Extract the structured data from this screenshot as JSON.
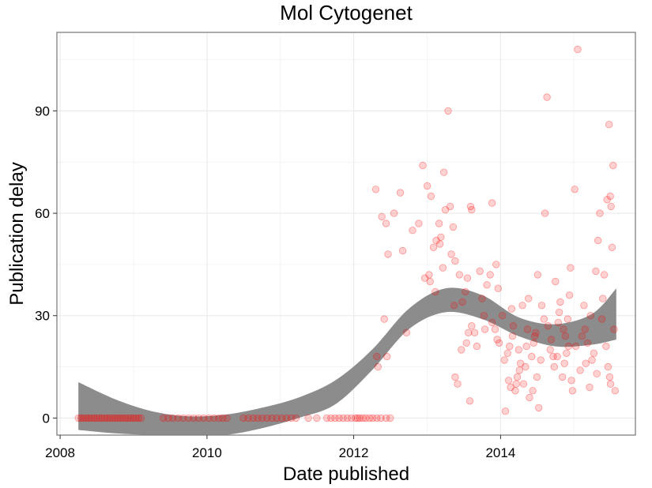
{
  "chart_data": {
    "type": "scatter",
    "title": "Mol Cytogenet",
    "xlabel": "Date published",
    "ylabel": "Publication delay",
    "x_ticks": [
      "2008",
      "2010",
      "2012",
      "2014"
    ],
    "y_ticks": [
      "0",
      "30",
      "60",
      "90"
    ],
    "xlim": [
      "2007-12-16",
      "2015-11-03"
    ],
    "ylim": [
      -5,
      113
    ],
    "grid": true,
    "legend": "none",
    "colors": {
      "points": "#ff0000",
      "smooth_band": "#8c8c8c",
      "grid": "#ebebeb",
      "border": "#7f7f7f"
    },
    "series": [
      {
        "points": [
          [
            "2008-04-01",
            0
          ],
          [
            "2008-04-14",
            0
          ],
          [
            "2008-04-27",
            0
          ],
          [
            "2008-05-10",
            0
          ],
          [
            "2008-05-23",
            0
          ],
          [
            "2008-06-05",
            0
          ],
          [
            "2008-06-18",
            0
          ],
          [
            "2008-07-01",
            0
          ],
          [
            "2008-07-14",
            0
          ],
          [
            "2008-07-27",
            0
          ],
          [
            "2008-08-09",
            0
          ],
          [
            "2008-08-22",
            0
          ],
          [
            "2008-09-04",
            0
          ],
          [
            "2008-09-17",
            0
          ],
          [
            "2008-09-30",
            0
          ],
          [
            "2008-10-13",
            0
          ],
          [
            "2008-10-26",
            0
          ],
          [
            "2008-11-08",
            0
          ],
          [
            "2008-11-21",
            0
          ],
          [
            "2008-12-04",
            0
          ],
          [
            "2008-12-17",
            0
          ],
          [
            "2008-12-30",
            0
          ],
          [
            "2009-01-12",
            0
          ],
          [
            "2009-01-25",
            0
          ],
          [
            "2009-02-07",
            0
          ],
          [
            "2009-05-28",
            0
          ],
          [
            "2009-06-22",
            0
          ],
          [
            "2009-07-15",
            0
          ],
          [
            "2009-08-10",
            0
          ],
          [
            "2009-09-05",
            0
          ],
          [
            "2009-10-01",
            0
          ],
          [
            "2009-10-26",
            0
          ],
          [
            "2009-11-20",
            0
          ],
          [
            "2009-12-15",
            0
          ],
          [
            "2010-01-10",
            0
          ],
          [
            "2010-02-04",
            0
          ],
          [
            "2010-03-01",
            0
          ],
          [
            "2010-03-20",
            0
          ],
          [
            "2010-04-10",
            0
          ],
          [
            "2010-07-01",
            0
          ],
          [
            "2010-07-25",
            0
          ],
          [
            "2010-08-18",
            0
          ],
          [
            "2010-09-10",
            0
          ],
          [
            "2010-10-03",
            0
          ],
          [
            "2010-10-27",
            0
          ],
          [
            "2010-11-20",
            0
          ],
          [
            "2010-12-14",
            0
          ],
          [
            "2011-01-08",
            0
          ],
          [
            "2011-02-01",
            0
          ],
          [
            "2011-02-25",
            0
          ],
          [
            "2011-03-20",
            0
          ],
          [
            "2011-05-20",
            0
          ],
          [
            "2011-07-01",
            0
          ],
          [
            "2011-08-20",
            0
          ],
          [
            "2011-09-10",
            0
          ],
          [
            "2011-09-30",
            0
          ],
          [
            "2011-10-20",
            0
          ],
          [
            "2011-11-09",
            0
          ],
          [
            "2011-11-30",
            0
          ],
          [
            "2011-12-20",
            0
          ],
          [
            "2012-01-09",
            0
          ],
          [
            "2012-01-20",
            0
          ],
          [
            "2012-01-31",
            0
          ],
          [
            "2012-02-15",
            0
          ],
          [
            "2012-03-01",
            0
          ],
          [
            "2012-03-20",
            0
          ],
          [
            "2012-04-05",
            0
          ],
          [
            "2012-04-25",
            0
          ],
          [
            "2012-05-15",
            0
          ],
          [
            "2012-06-10",
            0
          ],
          [
            "2012-07-01",
            0
          ],
          [
            "2012-04-20",
            67
          ],
          [
            "2012-05-20",
            59
          ],
          [
            "2012-06-10",
            57
          ],
          [
            "2012-06-20",
            48
          ],
          [
            "2012-07-20",
            60
          ],
          [
            "2012-08-20",
            66
          ],
          [
            "2012-06-01",
            29
          ],
          [
            "2012-09-01",
            49
          ],
          [
            "2012-09-20",
            25
          ],
          [
            "2012-04-25",
            18
          ],
          [
            "2012-05-01",
            15
          ],
          [
            "2012-06-15",
            18
          ],
          [
            "2012-10-20",
            55
          ],
          [
            "2012-11-20",
            57
          ],
          [
            "2012-12-10",
            74
          ],
          [
            "2013-01-01",
            68
          ],
          [
            "2013-01-20",
            65
          ],
          [
            "2013-02-01",
            50
          ],
          [
            "2013-02-15",
            52
          ],
          [
            "2013-03-01",
            57
          ],
          [
            "2013-03-10",
            53
          ],
          [
            "2013-03-25",
            72
          ],
          [
            "2013-04-01",
            61
          ],
          [
            "2013-04-15",
            90
          ],
          [
            "2013-04-25",
            62
          ],
          [
            "2013-05-10",
            56
          ],
          [
            "2012-12-20",
            41
          ],
          [
            "2013-01-10",
            42
          ],
          [
            "2013-01-15",
            40
          ],
          [
            "2013-02-10",
            37
          ],
          [
            "2013-03-05",
            51
          ],
          [
            "2013-03-20",
            44
          ],
          [
            "2013-05-01",
            48
          ],
          [
            "2013-05-20",
            46
          ],
          [
            "2013-06-10",
            42
          ],
          [
            "2013-06-25",
            34
          ],
          [
            "2013-07-10",
            37
          ],
          [
            "2013-07-20",
            41
          ],
          [
            "2013-08-05",
            62
          ],
          [
            "2013-08-10",
            61
          ],
          [
            "2013-05-15",
            33
          ],
          [
            "2013-05-20",
            12
          ],
          [
            "2013-06-20",
            20
          ],
          [
            "2013-07-15",
            22
          ],
          [
            "2013-07-25",
            25
          ],
          [
            "2013-08-10",
            27
          ],
          [
            "2013-08-25",
            25
          ],
          [
            "2013-09-05",
            21
          ],
          [
            "2013-09-20",
            43
          ],
          [
            "2013-10-10",
            30
          ],
          [
            "2013-10-15",
            26
          ],
          [
            "2013-10-25",
            39
          ],
          [
            "2013-11-10",
            42
          ],
          [
            "2013-11-20",
            63
          ],
          [
            "2013-12-10",
            45
          ],
          [
            "2013-12-20",
            38
          ],
          [
            "2013-08-01",
            5
          ],
          [
            "2013-06-01",
            10
          ],
          [
            "2013-11-20",
            28
          ],
          [
            "2013-12-05",
            26
          ],
          [
            "2013-12-15",
            23
          ],
          [
            "2013-12-25",
            22
          ],
          [
            "2014-01-10",
            30
          ],
          [
            "2014-01-20",
            17
          ],
          [
            "2014-01-25",
            2
          ],
          [
            "2014-02-10",
            11
          ],
          [
            "2014-02-15",
            21
          ],
          [
            "2014-02-20",
            9
          ],
          [
            "2014-03-01",
            24
          ],
          [
            "2014-03-15",
            8
          ],
          [
            "2014-03-25",
            12
          ],
          [
            "2013-10-01",
            35
          ],
          [
            "2014-04-01",
            20
          ],
          [
            "2014-04-10",
            16
          ],
          [
            "2014-04-25",
            10
          ],
          [
            "2014-05-05",
            15
          ],
          [
            "2014-05-15",
            26
          ],
          [
            "2014-05-25",
            6
          ],
          [
            "2014-06-10",
            8
          ],
          [
            "2014-06-15",
            22
          ],
          [
            "2014-06-20",
            24
          ],
          [
            "2014-07-05",
            42
          ],
          [
            "2014-07-10",
            3
          ],
          [
            "2014-07-20",
            17
          ],
          [
            "2014-08-10",
            60
          ],
          [
            "2014-08-20",
            94
          ],
          [
            "2014-09-10",
            23
          ],
          [
            "2014-09-20",
            18
          ],
          [
            "2014-10-01",
            40
          ],
          [
            "2014-10-15",
            28
          ],
          [
            "2014-10-20",
            31
          ],
          [
            "2014-10-25",
            34
          ],
          [
            "2014-11-05",
            12
          ],
          [
            "2014-11-10",
            26
          ],
          [
            "2014-11-15",
            16
          ],
          [
            "2014-11-25",
            19
          ],
          [
            "2014-12-01",
            29
          ],
          [
            "2014-12-10",
            36
          ],
          [
            "2014-12-15",
            44
          ],
          [
            "2014-12-20",
            11
          ],
          [
            "2014-12-25",
            8
          ],
          [
            "2015-01-05",
            67
          ],
          [
            "2015-01-10",
            21
          ],
          [
            "2015-01-20",
            108
          ],
          [
            "2015-02-01",
            14
          ],
          [
            "2015-02-10",
            24
          ],
          [
            "2015-02-20",
            33
          ],
          [
            "2015-03-01",
            16
          ],
          [
            "2015-03-10",
            22
          ],
          [
            "2015-03-20",
            9
          ],
          [
            "2015-04-01",
            17
          ],
          [
            "2015-04-10",
            19
          ],
          [
            "2015-04-20",
            43
          ],
          [
            "2015-05-01",
            52
          ],
          [
            "2015-05-10",
            60
          ],
          [
            "2015-05-20",
            29
          ],
          [
            "2015-06-01",
            42
          ],
          [
            "2015-06-10",
            21
          ],
          [
            "2015-06-15",
            64
          ],
          [
            "2015-06-20",
            15
          ],
          [
            "2015-06-25",
            86
          ],
          [
            "2015-07-01",
            65
          ],
          [
            "2015-07-05",
            62
          ],
          [
            "2015-07-10",
            50
          ],
          [
            "2015-07-15",
            74
          ],
          [
            "2015-07-20",
            26
          ],
          [
            "2015-07-25",
            8
          ],
          [
            "2015-06-28",
            12
          ],
          [
            "2015-07-02",
            10
          ],
          [
            "2015-05-25",
            35
          ],
          [
            "2015-04-25",
            13
          ],
          [
            "2015-03-25",
            30
          ],
          [
            "2015-02-25",
            26
          ],
          [
            "2014-12-05",
            21
          ],
          [
            "2014-11-20",
            24
          ],
          [
            "2014-10-10",
            18
          ],
          [
            "2014-09-25",
            15
          ],
          [
            "2014-09-05",
            20
          ],
          [
            "2014-08-25",
            27
          ],
          [
            "2014-08-05",
            29
          ],
          [
            "2014-07-25",
            33
          ],
          [
            "2014-07-01",
            12
          ],
          [
            "2014-06-25",
            25
          ],
          [
            "2014-06-05",
            18
          ],
          [
            "2014-05-20",
            35
          ],
          [
            "2014-05-10",
            21
          ],
          [
            "2014-04-20",
            33
          ],
          [
            "2014-04-05",
            14
          ],
          [
            "2014-03-20",
            10
          ],
          [
            "2014-03-05",
            27
          ],
          [
            "2014-02-25",
            32
          ],
          [
            "2014-02-05",
            19
          ]
        ]
      }
    ],
    "smooth": {
      "x": [
        "2008-04-01",
        "2008-10-01",
        "2009-04-01",
        "2009-10-01",
        "2010-04-01",
        "2010-10-01",
        "2011-04-01",
        "2011-10-01",
        "2012-04-01",
        "2012-10-01",
        "2013-04-01",
        "2013-10-01",
        "2014-04-01",
        "2014-10-01",
        "2015-04-01",
        "2015-07-31"
      ],
      "lower": [
        -3.5,
        -4.5,
        -5.0,
        -5.5,
        -5.0,
        -3.0,
        0.0,
        4.0,
        14.0,
        26.0,
        31.0,
        29.0,
        24.0,
        21.0,
        21.5,
        23.0
      ],
      "upper": [
        10.5,
        5.5,
        2.0,
        0.5,
        1.0,
        3.0,
        6.0,
        11.0,
        20.0,
        32.0,
        38.0,
        36.0,
        29.5,
        27.5,
        30.5,
        38.0
      ]
    }
  }
}
